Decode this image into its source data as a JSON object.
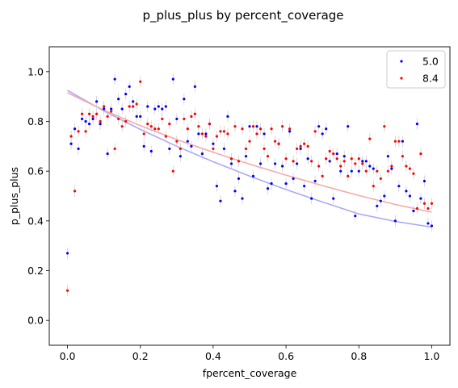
{
  "chart_data": {
    "type": "scatter",
    "title": "p_plus_plus by percent_coverage",
    "xlabel": "fpercent_coverage",
    "ylabel": "p_plus_plus",
    "xlim": [
      -0.05,
      1.05
    ],
    "ylim": [
      -0.1,
      1.1
    ],
    "xticks": [
      0.0,
      0.2,
      0.4,
      0.6,
      0.8,
      1.0
    ],
    "xtick_labels": [
      "0.0",
      "0.2",
      "0.4",
      "0.6",
      "0.8",
      "1.0"
    ],
    "yticks": [
      0.0,
      0.2,
      0.4,
      0.6,
      0.8,
      1.0
    ],
    "ytick_labels": [
      "0.0",
      "0.2",
      "0.4",
      "0.6",
      "0.8",
      "1.0"
    ],
    "grid": false,
    "legend_position": "top-right",
    "series": [
      {
        "name": "5.0",
        "color": "#0000ff",
        "trend_color": "#aaaaf4",
        "trend": [
          [
            0.0,
            0.925
          ],
          [
            0.1,
            0.842
          ],
          [
            0.2,
            0.768
          ],
          [
            0.3,
            0.7
          ],
          [
            0.4,
            0.638
          ],
          [
            0.5,
            0.58
          ],
          [
            0.6,
            0.526
          ],
          [
            0.7,
            0.476
          ],
          [
            0.8,
            0.428
          ],
          [
            0.9,
            0.398
          ],
          [
            1.0,
            0.375
          ]
        ],
        "points": [
          [
            0.0,
            0.27
          ],
          [
            0.01,
            0.71
          ],
          [
            0.02,
            0.77
          ],
          [
            0.03,
            0.69
          ],
          [
            0.04,
            0.81
          ],
          [
            0.05,
            0.8
          ],
          [
            0.06,
            0.79
          ],
          [
            0.07,
            0.81
          ],
          [
            0.08,
            0.88
          ],
          [
            0.09,
            0.79
          ],
          [
            0.1,
            0.85
          ],
          [
            0.11,
            0.67
          ],
          [
            0.12,
            0.85
          ],
          [
            0.13,
            0.97
          ],
          [
            0.14,
            0.89
          ],
          [
            0.15,
            0.85
          ],
          [
            0.16,
            0.91
          ],
          [
            0.17,
            0.94
          ],
          [
            0.18,
            0.88
          ],
          [
            0.19,
            0.82
          ],
          [
            0.2,
            0.82
          ],
          [
            0.21,
            0.7
          ],
          [
            0.22,
            0.86
          ],
          [
            0.23,
            0.68
          ],
          [
            0.24,
            0.85
          ],
          [
            0.25,
            0.86
          ],
          [
            0.26,
            0.85
          ],
          [
            0.27,
            0.86
          ],
          [
            0.28,
            0.69
          ],
          [
            0.29,
            0.97
          ],
          [
            0.3,
            0.81
          ],
          [
            0.31,
            0.66
          ],
          [
            0.32,
            0.89
          ],
          [
            0.33,
            0.72
          ],
          [
            0.34,
            0.7
          ],
          [
            0.35,
            0.94
          ],
          [
            0.36,
            0.75
          ],
          [
            0.37,
            0.67
          ],
          [
            0.38,
            0.75
          ],
          [
            0.39,
            0.79
          ],
          [
            0.4,
            0.71
          ],
          [
            0.41,
            0.54
          ],
          [
            0.42,
            0.48
          ],
          [
            0.43,
            0.69
          ],
          [
            0.44,
            0.82
          ],
          [
            0.45,
            0.63
          ],
          [
            0.46,
            0.52
          ],
          [
            0.47,
            0.57
          ],
          [
            0.48,
            0.49
          ],
          [
            0.49,
            0.66
          ],
          [
            0.5,
            0.78
          ],
          [
            0.51,
            0.58
          ],
          [
            0.52,
            0.78
          ],
          [
            0.53,
            0.63
          ],
          [
            0.54,
            0.75
          ],
          [
            0.55,
            0.53
          ],
          [
            0.56,
            0.55
          ],
          [
            0.57,
            0.63
          ],
          [
            0.58,
            0.71
          ],
          [
            0.59,
            0.62
          ],
          [
            0.6,
            0.55
          ],
          [
            0.61,
            0.76
          ],
          [
            0.62,
            0.57
          ],
          [
            0.63,
            0.63
          ],
          [
            0.64,
            0.69
          ],
          [
            0.65,
            0.54
          ],
          [
            0.66,
            0.65
          ],
          [
            0.67,
            0.49
          ],
          [
            0.68,
            0.56
          ],
          [
            0.69,
            0.78
          ],
          [
            0.7,
            0.75
          ],
          [
            0.71,
            0.77
          ],
          [
            0.72,
            0.64
          ],
          [
            0.73,
            0.49
          ],
          [
            0.74,
            0.67
          ],
          [
            0.75,
            0.6
          ],
          [
            0.76,
            0.66
          ],
          [
            0.77,
            0.78
          ],
          [
            0.78,
            0.6
          ],
          [
            0.79,
            0.42
          ],
          [
            0.8,
            0.6
          ],
          [
            0.81,
            0.64
          ],
          [
            0.82,
            0.64
          ],
          [
            0.83,
            0.62
          ],
          [
            0.84,
            0.61
          ],
          [
            0.85,
            0.46
          ],
          [
            0.86,
            0.48
          ],
          [
            0.87,
            0.5
          ],
          [
            0.88,
            0.66
          ],
          [
            0.89,
            0.61
          ],
          [
            0.9,
            0.4
          ],
          [
            0.91,
            0.54
          ],
          [
            0.92,
            0.72
          ],
          [
            0.93,
            0.52
          ],
          [
            0.94,
            0.5
          ],
          [
            0.95,
            0.44
          ],
          [
            0.96,
            0.79
          ],
          [
            0.97,
            0.49
          ],
          [
            0.98,
            0.56
          ],
          [
            0.99,
            0.39
          ],
          [
            1.0,
            0.38
          ]
        ]
      },
      {
        "name": "8.4",
        "color": "#ff0000",
        "trend_color": "#f4aaaa",
        "trend": [
          [
            0.0,
            0.915
          ],
          [
            0.1,
            0.845
          ],
          [
            0.2,
            0.783
          ],
          [
            0.3,
            0.727
          ],
          [
            0.4,
            0.676
          ],
          [
            0.5,
            0.628
          ],
          [
            0.6,
            0.584
          ],
          [
            0.7,
            0.542
          ],
          [
            0.8,
            0.502
          ],
          [
            0.9,
            0.466
          ],
          [
            1.0,
            0.435
          ]
        ],
        "points": [
          [
            0.0,
            0.12
          ],
          [
            0.01,
            0.74
          ],
          [
            0.02,
            0.52
          ],
          [
            0.03,
            0.76
          ],
          [
            0.04,
            0.83
          ],
          [
            0.05,
            0.76
          ],
          [
            0.06,
            0.83
          ],
          [
            0.07,
            0.82
          ],
          [
            0.08,
            0.83
          ],
          [
            0.09,
            0.8
          ],
          [
            0.1,
            0.86
          ],
          [
            0.11,
            0.82
          ],
          [
            0.12,
            0.84
          ],
          [
            0.13,
            0.69
          ],
          [
            0.14,
            0.81
          ],
          [
            0.15,
            0.78
          ],
          [
            0.16,
            0.8
          ],
          [
            0.17,
            0.86
          ],
          [
            0.18,
            0.86
          ],
          [
            0.19,
            0.87
          ],
          [
            0.2,
            0.96
          ],
          [
            0.21,
            0.75
          ],
          [
            0.22,
            0.79
          ],
          [
            0.23,
            0.78
          ],
          [
            0.24,
            0.77
          ],
          [
            0.25,
            0.77
          ],
          [
            0.26,
            0.81
          ],
          [
            0.27,
            0.74
          ],
          [
            0.28,
            0.79
          ],
          [
            0.29,
            0.6
          ],
          [
            0.3,
            0.72
          ],
          [
            0.31,
            0.69
          ],
          [
            0.32,
            0.81
          ],
          [
            0.33,
            0.77
          ],
          [
            0.34,
            0.82
          ],
          [
            0.35,
            0.83
          ],
          [
            0.36,
            0.78
          ],
          [
            0.37,
            0.75
          ],
          [
            0.38,
            0.74
          ],
          [
            0.39,
            0.79
          ],
          [
            0.4,
            0.69
          ],
          [
            0.41,
            0.74
          ],
          [
            0.42,
            0.76
          ],
          [
            0.43,
            0.76
          ],
          [
            0.44,
            0.75
          ],
          [
            0.45,
            0.65
          ],
          [
            0.46,
            0.78
          ],
          [
            0.47,
            0.64
          ],
          [
            0.48,
            0.77
          ],
          [
            0.49,
            0.69
          ],
          [
            0.5,
            0.72
          ],
          [
            0.51,
            0.78
          ],
          [
            0.52,
            0.75
          ],
          [
            0.53,
            0.77
          ],
          [
            0.54,
            0.69
          ],
          [
            0.55,
            0.66
          ],
          [
            0.56,
            0.77
          ],
          [
            0.57,
            0.72
          ],
          [
            0.58,
            0.71
          ],
          [
            0.59,
            0.78
          ],
          [
            0.6,
            0.65
          ],
          [
            0.61,
            0.77
          ],
          [
            0.62,
            0.64
          ],
          [
            0.63,
            0.69
          ],
          [
            0.64,
            0.7
          ],
          [
            0.65,
            0.71
          ],
          [
            0.66,
            0.7
          ],
          [
            0.67,
            0.64
          ],
          [
            0.68,
            0.76
          ],
          [
            0.69,
            0.62
          ],
          [
            0.7,
            0.58
          ],
          [
            0.71,
            0.65
          ],
          [
            0.72,
            0.68
          ],
          [
            0.73,
            0.67
          ],
          [
            0.74,
            0.65
          ],
          [
            0.75,
            0.62
          ],
          [
            0.76,
            0.64
          ],
          [
            0.77,
            0.58
          ],
          [
            0.78,
            0.65
          ],
          [
            0.79,
            0.63
          ],
          [
            0.8,
            0.65
          ],
          [
            0.81,
            0.63
          ],
          [
            0.82,
            0.6
          ],
          [
            0.83,
            0.73
          ],
          [
            0.84,
            0.54
          ],
          [
            0.85,
            0.6
          ],
          [
            0.86,
            0.57
          ],
          [
            0.87,
            0.78
          ],
          [
            0.88,
            0.6
          ],
          [
            0.89,
            0.62
          ],
          [
            0.9,
            0.72
          ],
          [
            0.91,
            0.72
          ],
          [
            0.92,
            0.66
          ],
          [
            0.93,
            0.62
          ],
          [
            0.94,
            0.61
          ],
          [
            0.95,
            0.59
          ],
          [
            0.96,
            0.45
          ],
          [
            0.97,
            0.67
          ],
          [
            0.98,
            0.47
          ],
          [
            0.99,
            0.45
          ],
          [
            1.0,
            0.47
          ]
        ]
      }
    ]
  }
}
